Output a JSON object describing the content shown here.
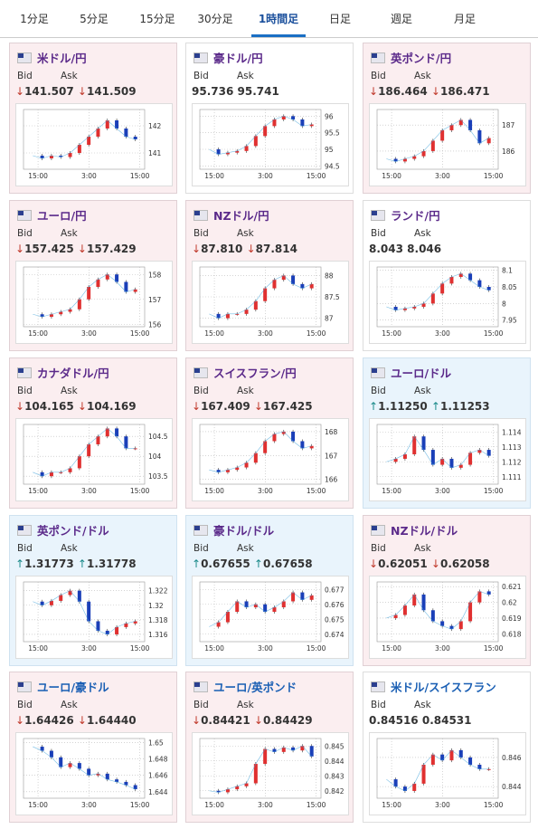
{
  "tabs": {
    "items": [
      "1分足",
      "5分足",
      "15分足",
      "30分足",
      "1時間足",
      "日足",
      "週足",
      "月足"
    ],
    "active": 4
  },
  "cards": [
    {
      "name": "米ドル/円",
      "trend": "down",
      "bid_label": "Bid",
      "ask_label": "Ask",
      "bid_arrow": "↓",
      "bid": "141.507",
      "ask_arrow": "↓",
      "ask": "141.509",
      "chart": {
        "ylim": [
          140.4,
          142.6
        ],
        "yticks": [
          142,
          141
        ],
        "xticks": [
          "15:00",
          "3:00",
          "15:00"
        ],
        "values": [
          140.9,
          140.8,
          140.9,
          140.85,
          141.0,
          141.3,
          141.6,
          141.9,
          142.2,
          141.9,
          141.6,
          141.5
        ]
      }
    },
    {
      "name": "豪ドル/円",
      "trend": "flat",
      "bid_label": "Bid",
      "ask_label": "Ask",
      "bid_arrow": null,
      "bid": "95.736",
      "ask_arrow": null,
      "ask": "95.741",
      "chart": {
        "ylim": [
          94.4,
          96.2
        ],
        "yticks": [
          96,
          95.5,
          95,
          94.5
        ],
        "xticks": [
          "15:00",
          "3:00",
          "15:00"
        ],
        "values": [
          95.0,
          94.85,
          94.9,
          94.95,
          95.1,
          95.4,
          95.7,
          95.9,
          96.0,
          95.9,
          95.7,
          95.75
        ]
      }
    },
    {
      "name": "英ポンド/円",
      "trend": "down",
      "bid_label": "Bid",
      "ask_label": "Ask",
      "bid_arrow": "↓",
      "bid": "186.464",
      "ask_arrow": "↓",
      "ask": "186.471",
      "chart": {
        "ylim": [
          185.3,
          187.6
        ],
        "yticks": [
          187,
          186
        ],
        "xticks": [
          "15:00",
          "3:00",
          "15:00"
        ],
        "values": [
          185.7,
          185.6,
          185.7,
          185.8,
          186.0,
          186.4,
          186.8,
          187.0,
          187.2,
          186.8,
          186.3,
          186.5
        ]
      }
    },
    {
      "name": "ユーロ/円",
      "trend": "down",
      "bid_label": "Bid",
      "ask_label": "Ask",
      "bid_arrow": "↓",
      "bid": "157.425",
      "ask_arrow": "↓",
      "ask": "157.429",
      "chart": {
        "ylim": [
          155.9,
          158.3
        ],
        "yticks": [
          158,
          157,
          156
        ],
        "xticks": [
          "15:00",
          "3:00",
          "15:00"
        ],
        "values": [
          156.4,
          156.3,
          156.4,
          156.5,
          156.6,
          157.0,
          157.5,
          157.8,
          158.0,
          157.7,
          157.3,
          157.4
        ]
      }
    },
    {
      "name": "NZドル/円",
      "trend": "down",
      "bid_label": "Bid",
      "ask_label": "Ask",
      "bid_arrow": "↓",
      "bid": "87.810",
      "ask_arrow": "↓",
      "ask": "87.814",
      "chart": {
        "ylim": [
          86.8,
          88.2
        ],
        "yticks": [
          88,
          87.5,
          87
        ],
        "xticks": [
          "15:00",
          "3:00",
          "15:00"
        ],
        "values": [
          87.1,
          87.0,
          87.1,
          87.1,
          87.2,
          87.4,
          87.7,
          87.9,
          88.0,
          87.8,
          87.7,
          87.8
        ]
      }
    },
    {
      "name": "ランド/円",
      "trend": "flat",
      "bid_label": "Bid",
      "ask_label": "Ask",
      "bid_arrow": null,
      "bid": "8.043",
      "ask_arrow": null,
      "ask": "8.046",
      "chart": {
        "ylim": [
          7.93,
          8.11
        ],
        "yticks": [
          8.1,
          8.05,
          8,
          7.95
        ],
        "xticks": [
          "15:00",
          "3:00",
          "15:00"
        ],
        "values": [
          7.99,
          7.98,
          7.985,
          7.99,
          8.0,
          8.03,
          8.06,
          8.08,
          8.09,
          8.07,
          8.05,
          8.04
        ]
      }
    },
    {
      "name": "カナダドル/円",
      "trend": "down",
      "bid_label": "Bid",
      "ask_label": "Ask",
      "bid_arrow": "↓",
      "bid": "104.165",
      "ask_arrow": "↓",
      "ask": "104.169",
      "chart": {
        "ylim": [
          103.3,
          104.8
        ],
        "yticks": [
          104.5,
          104,
          103.5
        ],
        "xticks": [
          "15:00",
          "3:00",
          "15:00"
        ],
        "values": [
          103.6,
          103.5,
          103.6,
          103.6,
          103.7,
          104.0,
          104.3,
          104.5,
          104.7,
          104.5,
          104.2,
          104.2
        ]
      }
    },
    {
      "name": "スイスフラン/円",
      "trend": "down",
      "bid_label": "Bid",
      "ask_label": "Ask",
      "bid_arrow": "↓",
      "bid": "167.409",
      "ask_arrow": "↓",
      "ask": "167.425",
      "chart": {
        "ylim": [
          165.8,
          168.3
        ],
        "yticks": [
          168,
          167,
          166
        ],
        "xticks": [
          "15:00",
          "3:00",
          "15:00"
        ],
        "values": [
          166.4,
          166.3,
          166.4,
          166.5,
          166.7,
          167.1,
          167.6,
          167.9,
          168.0,
          167.6,
          167.3,
          167.4
        ]
      }
    },
    {
      "name": "ユーロ/ドル",
      "trend": "up",
      "bid_label": "Bid",
      "ask_label": "Ask",
      "bid_arrow": "↑",
      "bid": "1.11250",
      "ask_arrow": "↑",
      "ask": "1.11253",
      "chart": {
        "ylim": [
          1.1105,
          1.1145
        ],
        "yticks": [
          1.114,
          1.113,
          1.112,
          1.111
        ],
        "xticks": [
          "15:00",
          "3:00",
          "15:00"
        ],
        "values": [
          1.112,
          1.1122,
          1.1125,
          1.1137,
          1.1128,
          1.1118,
          1.1122,
          1.1116,
          1.1118,
          1.1126,
          1.1128,
          1.1124
        ]
      }
    },
    {
      "name": "英ポンド/ドル",
      "trend": "up",
      "bid_label": "Bid",
      "ask_label": "Ask",
      "bid_arrow": "↑",
      "bid": "1.31773",
      "ask_arrow": "↑",
      "ask": "1.31778",
      "chart": {
        "ylim": [
          1.315,
          1.3232
        ],
        "yticks": [
          1.322,
          1.32,
          1.318,
          1.316
        ],
        "xticks": [
          "15:00",
          "3:00",
          "15:00"
        ],
        "values": [
          1.3205,
          1.32,
          1.3206,
          1.3214,
          1.322,
          1.3205,
          1.3178,
          1.3165,
          1.316,
          1.317,
          1.3175,
          1.3178
        ]
      }
    },
    {
      "name": "豪ドル/ドル",
      "trend": "up",
      "bid_label": "Bid",
      "ask_label": "Ask",
      "bid_arrow": "↑",
      "bid": "0.67655",
      "ask_arrow": "↑",
      "ask": "0.67658",
      "chart": {
        "ylim": [
          0.6735,
          0.6775
        ],
        "yticks": [
          0.677,
          0.676,
          0.675,
          0.674
        ],
        "xticks": [
          "15:00",
          "3:00",
          "15:00"
        ],
        "values": [
          0.6745,
          0.6748,
          0.6755,
          0.6762,
          0.6758,
          0.676,
          0.6755,
          0.6758,
          0.6762,
          0.6768,
          0.6763,
          0.6766
        ]
      }
    },
    {
      "name": "NZドル/ドル",
      "trend": "down",
      "bid_label": "Bid",
      "ask_label": "Ask",
      "bid_arrow": "↓",
      "bid": "0.62051",
      "ask_arrow": "↓",
      "ask": "0.62058",
      "chart": {
        "ylim": [
          0.6175,
          0.6213
        ],
        "yticks": [
          0.621,
          0.62,
          0.619,
          0.618
        ],
        "xticks": [
          "15:00",
          "3:00",
          "15:00"
        ],
        "values": [
          0.619,
          0.6192,
          0.6198,
          0.6205,
          0.6195,
          0.6188,
          0.6185,
          0.6183,
          0.6188,
          0.62,
          0.6207,
          0.6205
        ]
      }
    },
    {
      "name": "ユーロ/豪ドル",
      "trend": "down",
      "blue": true,
      "bid_label": "Bid",
      "ask_label": "Ask",
      "bid_arrow": "↓",
      "bid": "1.64426",
      "ask_arrow": "↓",
      "ask": "1.64440",
      "chart": {
        "ylim": [
          1.6432,
          1.6505
        ],
        "yticks": [
          1.65,
          1.648,
          1.646,
          1.644
        ],
        "xticks": [
          "15:00",
          "3:00",
          "15:00"
        ],
        "values": [
          1.6495,
          1.649,
          1.6482,
          1.647,
          1.6475,
          1.6468,
          1.646,
          1.6462,
          1.6455,
          1.6452,
          1.6448,
          1.6443
        ]
      }
    },
    {
      "name": "ユーロ/英ポンド",
      "trend": "down",
      "blue": true,
      "bid_label": "Bid",
      "ask_label": "Ask",
      "bid_arrow": "↓",
      "bid": "0.84421",
      "ask_arrow": "↓",
      "ask": "0.84429",
      "chart": {
        "ylim": [
          0.8415,
          0.8455
        ],
        "yticks": [
          0.845,
          0.844,
          0.843,
          0.842
        ],
        "xticks": [
          "15:00",
          "3:00",
          "15:00"
        ],
        "values": [
          0.842,
          0.8419,
          0.8421,
          0.8423,
          0.8425,
          0.8438,
          0.8448,
          0.8446,
          0.8449,
          0.8447,
          0.845,
          0.8443
        ]
      }
    },
    {
      "name": "米ドル/スイスフラン",
      "trend": "flat",
      "blue": true,
      "bid_label": "Bid",
      "ask_label": "Ask",
      "bid_arrow": null,
      "bid": "0.84516",
      "ask_arrow": null,
      "ask": "0.84531",
      "chart": {
        "ylim": [
          0.8432,
          0.8473
        ],
        "yticks": [
          0.846,
          0.844
        ],
        "xticks": [
          "15:00",
          "3:00",
          "15:00"
        ],
        "values": [
          0.8445,
          0.844,
          0.8437,
          0.8442,
          0.8455,
          0.8462,
          0.8458,
          0.8465,
          0.846,
          0.8455,
          0.8452,
          0.8452
        ]
      }
    }
  ]
}
